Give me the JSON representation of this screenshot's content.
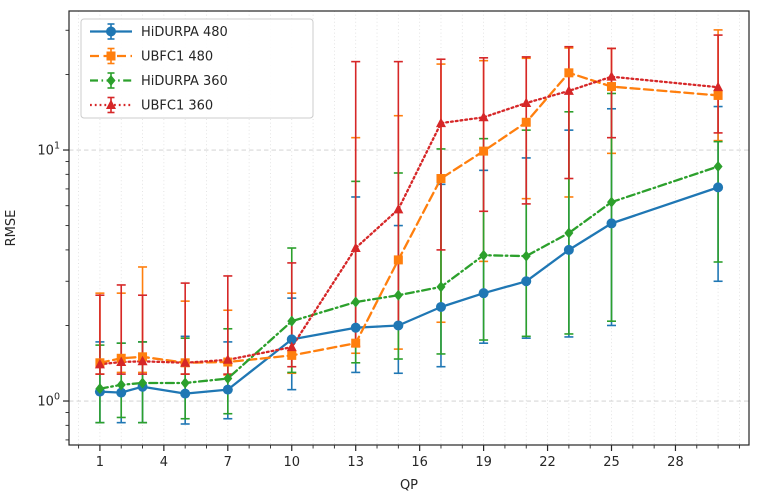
{
  "figure": {
    "xlabel": "QP",
    "ylabel": "RMSE",
    "background": "#ffffff",
    "spine_color": "#262626",
    "grid_color_x": "#d9d9d9",
    "grid_color_y": "#cccccc"
  },
  "chart_data": {
    "type": "line",
    "title": "",
    "xlabel": "QP",
    "ylabel": "RMSE",
    "x_axis": {
      "label": "QP",
      "scale": "linear",
      "range": [
        -0.45,
        31.45
      ],
      "major_ticks": [
        1,
        4,
        7,
        10,
        13,
        16,
        19,
        22,
        25,
        28
      ],
      "major_tick_labels": [
        "1",
        "4",
        "7",
        "10",
        "13",
        "16",
        "19",
        "22",
        "25",
        "28"
      ],
      "minor_tick_step": 1,
      "grid": "dotted at every integer"
    },
    "y_axis": {
      "label": "RMSE",
      "scale": "log",
      "range": [
        0.668,
        35.8
      ],
      "major_ticks": [
        {
          "value": 1,
          "base": "10",
          "exp": "0"
        },
        {
          "value": 10,
          "base": "10",
          "exp": "1"
        }
      ],
      "minor_ticks": [
        0.7,
        0.8,
        0.9,
        2,
        3,
        4,
        5,
        6,
        7,
        8,
        9,
        20,
        30
      ],
      "grid": "dashed at major ticks"
    },
    "legend": {
      "position": "upper-left"
    },
    "x": [
      1,
      2,
      3,
      5,
      7,
      10,
      13,
      15,
      17,
      19,
      21,
      23,
      25,
      30
    ],
    "series": [
      {
        "name": "HiDURPA 480",
        "color": "#1f77b4",
        "linestyle": "solid",
        "marker": "circle",
        "values": [
          1.09,
          1.08,
          1.14,
          1.07,
          1.11,
          1.76,
          1.96,
          2.0,
          2.37,
          2.69,
          3.0,
          4.0,
          5.1,
          7.1
        ],
        "err_low": [
          0.82,
          0.82,
          0.82,
          0.81,
          0.85,
          1.11,
          1.3,
          1.29,
          1.37,
          1.7,
          1.78,
          1.8,
          2.0,
          3.0
        ],
        "err_high": [
          1.72,
          1.7,
          1.72,
          1.81,
          1.72,
          2.57,
          6.5,
          5.0,
          7.3,
          8.3,
          9.3,
          12.0,
          14.6,
          14.9
        ]
      },
      {
        "name": "UBFC1 480",
        "color": "#ff7f0e",
        "linestyle": "dashed",
        "marker": "square",
        "values": [
          1.42,
          1.48,
          1.5,
          1.42,
          1.43,
          1.52,
          1.7,
          3.65,
          7.7,
          9.9,
          12.9,
          20.3,
          17.9,
          16.5
        ],
        "err_low": [
          1.28,
          1.3,
          1.3,
          1.28,
          1.27,
          1.29,
          1.55,
          1.61,
          2.06,
          3.6,
          6.4,
          6.5,
          9.7,
          10.9
        ],
        "err_high": [
          2.69,
          2.69,
          3.42,
          2.5,
          2.3,
          2.69,
          11.2,
          13.7,
          22.0,
          22.7,
          23.2,
          25.5,
          25.4,
          30.1
        ]
      },
      {
        "name": "HiDURPA 360",
        "color": "#2ca02c",
        "linestyle": "dashdot",
        "marker": "diamond",
        "values": [
          1.12,
          1.16,
          1.18,
          1.18,
          1.23,
          2.08,
          2.48,
          2.64,
          2.85,
          3.81,
          3.78,
          4.67,
          6.2,
          8.6
        ],
        "err_low": [
          0.82,
          0.86,
          0.82,
          0.85,
          0.89,
          1.3,
          1.42,
          1.47,
          1.54,
          1.75,
          1.81,
          1.85,
          2.08,
          3.58
        ],
        "err_high": [
          1.67,
          1.7,
          1.72,
          1.78,
          1.94,
          4.07,
          7.5,
          8.1,
          10.1,
          11.1,
          12.0,
          14.2,
          16.8,
          10.8
        ]
      },
      {
        "name": "UBFC1 360",
        "color": "#d62728",
        "linestyle": "dotted",
        "marker": "triangle",
        "values": [
          1.4,
          1.43,
          1.44,
          1.42,
          1.46,
          1.64,
          4.07,
          5.8,
          12.8,
          13.5,
          15.4,
          17.2,
          19.6,
          17.8
        ],
        "err_low": [
          1.28,
          1.28,
          1.28,
          1.28,
          1.28,
          1.37,
          1.65,
          2.0,
          4.0,
          5.7,
          6.1,
          7.7,
          11.2,
          11.7
        ],
        "err_high": [
          2.64,
          2.9,
          2.64,
          2.95,
          3.15,
          3.55,
          22.5,
          22.5,
          23.0,
          23.3,
          23.5,
          25.8,
          25.4,
          28.7
        ]
      }
    ]
  }
}
